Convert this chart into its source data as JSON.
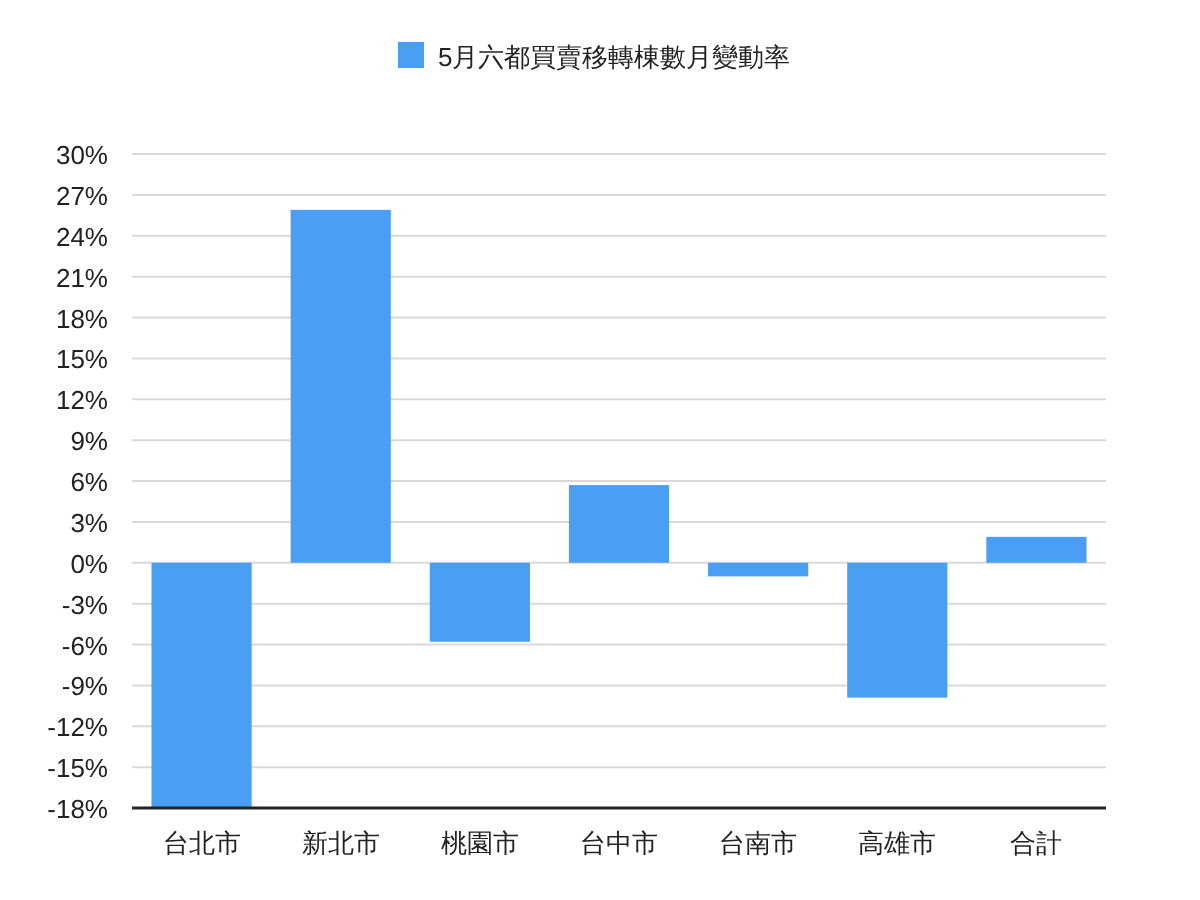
{
  "chart_data": {
    "type": "bar",
    "categories": [
      "台北市",
      "新北市",
      "桃園市",
      "台中市",
      "台南市",
      "高雄市",
      "合計"
    ],
    "series": [
      {
        "name": "5月六都買賣移轉棟數月變動率",
        "color": "#4a9ff5",
        "values": [
          -18,
          25.9,
          -5.8,
          5.7,
          -1.0,
          -9.9,
          1.9
        ]
      }
    ],
    "ylim": [
      -18,
      30
    ],
    "yticks": [
      {
        "value": -18,
        "label": "-18%"
      },
      {
        "value": -15,
        "label": "-15%"
      },
      {
        "value": -12,
        "label": "-12%"
      },
      {
        "value": -9,
        "label": "-9%"
      },
      {
        "value": -6,
        "label": "-6%"
      },
      {
        "value": -3,
        "label": "-3%"
      },
      {
        "value": 0,
        "label": "0%"
      },
      {
        "value": 3,
        "label": "3%"
      },
      {
        "value": 6,
        "label": "6%"
      },
      {
        "value": 9,
        "label": "9%"
      },
      {
        "value": 12,
        "label": "12%"
      },
      {
        "value": 15,
        "label": "15%"
      },
      {
        "value": 18,
        "label": "18%"
      },
      {
        "value": 21,
        "label": "21%"
      },
      {
        "value": 24,
        "label": "24%"
      },
      {
        "value": 27,
        "label": "27%"
      },
      {
        "value": 30,
        "label": "30%"
      }
    ],
    "grid": "y",
    "legend": "top"
  }
}
